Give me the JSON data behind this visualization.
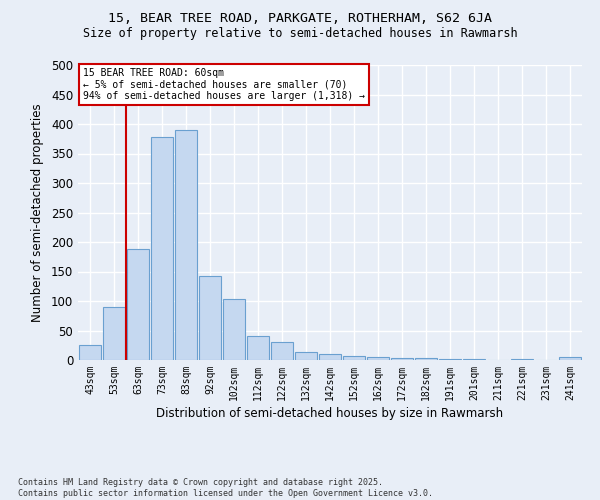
{
  "title1": "15, BEAR TREE ROAD, PARKGATE, ROTHERHAM, S62 6JA",
  "title2": "Size of property relative to semi-detached houses in Rawmarsh",
  "xlabel": "Distribution of semi-detached houses by size in Rawmarsh",
  "ylabel": "Number of semi-detached properties",
  "categories": [
    "43sqm",
    "53sqm",
    "63sqm",
    "73sqm",
    "83sqm",
    "92sqm",
    "102sqm",
    "112sqm",
    "122sqm",
    "132sqm",
    "142sqm",
    "152sqm",
    "162sqm",
    "172sqm",
    "182sqm",
    "191sqm",
    "201sqm",
    "211sqm",
    "221sqm",
    "231sqm",
    "241sqm"
  ],
  "values": [
    25,
    90,
    188,
    378,
    390,
    143,
    103,
    40,
    30,
    13,
    10,
    7,
    5,
    3,
    3,
    1,
    1,
    0,
    1,
    0,
    5
  ],
  "bar_color": "#c5d8f0",
  "bar_edge_color": "#6aa0d0",
  "vline_color": "#cc0000",
  "vline_x": 1.5,
  "annotation_title": "15 BEAR TREE ROAD: 60sqm",
  "annotation_line1": "← 5% of semi-detached houses are smaller (70)",
  "annotation_line2": "94% of semi-detached houses are larger (1,318) →",
  "annotation_box_color": "#ffffff",
  "annotation_box_edge": "#cc0000",
  "footer1": "Contains HM Land Registry data © Crown copyright and database right 2025.",
  "footer2": "Contains public sector information licensed under the Open Government Licence v3.0.",
  "ylim": [
    0,
    500
  ],
  "yticks": [
    0,
    50,
    100,
    150,
    200,
    250,
    300,
    350,
    400,
    450,
    500
  ],
  "bg_color": "#e8eef7",
  "plot_bg_color": "#e8eef7"
}
